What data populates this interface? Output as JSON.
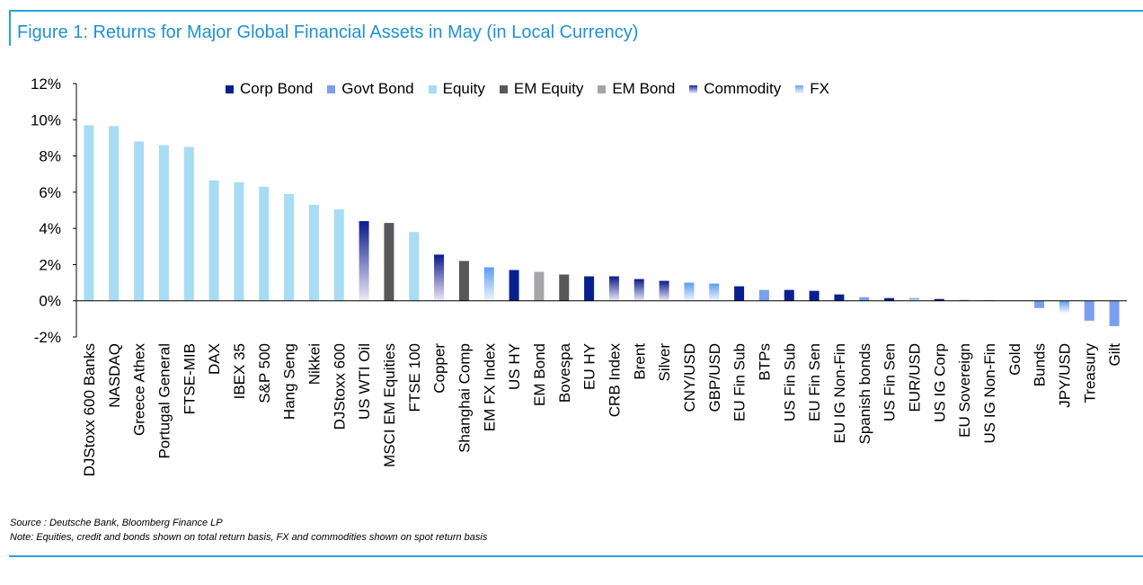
{
  "header": {
    "title": "Figure 1: Returns for Major Global Financial Assets in May (in Local Currency)"
  },
  "footer": {
    "source": "Source : Deutsche Bank, Bloomberg Finance LP",
    "note": "Note: Equities, credit and bonds shown on total return basis, FX and commodities shown on spot return basis"
  },
  "legend": [
    {
      "label": "Corp Bond",
      "color": "#0a1f8f",
      "style": "solid"
    },
    {
      "label": "Govt Bond",
      "color": "#7b9ff0",
      "style": "solid"
    },
    {
      "label": "Equity",
      "color": "#a8dcf5",
      "style": "solid"
    },
    {
      "label": "EM Equity",
      "color": "#58585b",
      "style": "solid"
    },
    {
      "label": "EM Bond",
      "color": "#a6a6a8",
      "style": "solid"
    },
    {
      "label": "Commodity",
      "color": "#1a2a9a",
      "style": "gradient"
    },
    {
      "label": "FX",
      "color": "#6aa8f2",
      "style": "gradient"
    }
  ],
  "chart_data": {
    "type": "bar",
    "ylim": [
      -2,
      12
    ],
    "yticks": [
      "12%",
      "10%",
      "8%",
      "6%",
      "4%",
      "2%",
      "0%",
      "-2%"
    ],
    "ytick_values": [
      12,
      10,
      8,
      6,
      4,
      2,
      0,
      -2
    ],
    "grid": false,
    "legend_position": "top",
    "categories": [
      "DJStoxx 600 Banks",
      "NASDAQ",
      "Greece Athex",
      "Portugal General",
      "FTSE-MIB",
      "DAX",
      "IBEX 35",
      "S&P 500",
      "Hang Seng",
      "Nikkei",
      "DJStoxx 600",
      "US WTI Oil",
      "MSCI EM Equities",
      "FTSE 100",
      "Copper",
      "Shanghai Comp",
      "EM FX Index",
      "US HY",
      "EM Bond",
      "Bovespa",
      "EU HY",
      "CRB Index",
      "Brent",
      "Silver",
      "CNY/USD",
      "GBP/USD",
      "EU Fin Sub",
      "BTPs",
      "US Fin Sub",
      "EU Fin Sen",
      "EU IG Non-Fin",
      "Spanish bonds",
      "US Fin Sen",
      "EUR/USD",
      "US IG Corp",
      "EU Sovereign",
      "US IG Non-Fin",
      "Gold",
      "Bunds",
      "JPY/USD",
      "Treasury",
      "Gilt"
    ],
    "values": [
      9.7,
      9.65,
      8.8,
      8.6,
      8.5,
      6.65,
      6.55,
      6.3,
      5.9,
      5.3,
      5.05,
      4.4,
      4.3,
      3.8,
      2.55,
      2.2,
      1.85,
      1.7,
      1.6,
      1.45,
      1.35,
      1.35,
      1.2,
      1.1,
      1.0,
      0.95,
      0.8,
      0.6,
      0.6,
      0.55,
      0.35,
      0.2,
      0.15,
      0.15,
      0.1,
      0.05,
      0.02,
      0.0,
      -0.4,
      -0.65,
      -1.1,
      -1.4
    ],
    "asset_class": [
      "Equity",
      "Equity",
      "Equity",
      "Equity",
      "Equity",
      "Equity",
      "Equity",
      "Equity",
      "Equity",
      "Equity",
      "Equity",
      "Commodity",
      "EM Equity",
      "Equity",
      "Commodity",
      "EM Equity",
      "FX",
      "Corp Bond",
      "EM Bond",
      "EM Equity",
      "Corp Bond",
      "Commodity",
      "Commodity",
      "Commodity",
      "FX",
      "FX",
      "Corp Bond",
      "Govt Bond",
      "Corp Bond",
      "Corp Bond",
      "Corp Bond",
      "Govt Bond",
      "Corp Bond",
      "FX",
      "Corp Bond",
      "Govt Bond",
      "Corp Bond",
      "Commodity",
      "Govt Bond",
      "FX",
      "Govt Bond",
      "Govt Bond"
    ]
  }
}
